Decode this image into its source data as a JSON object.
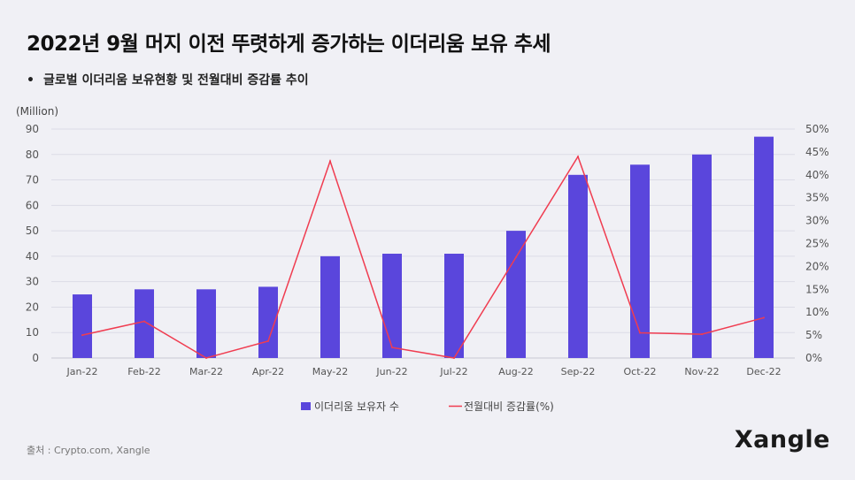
{
  "title": "2022년 9월 머지 이전 뚜렷하게 증가하는 이더리움 보유 추세",
  "subtitle": {
    "bullet": "•",
    "text": "글로벌 이더리움 보유현황 및 전월대비 증감률 추이"
  },
  "source": "출처 : Crypto.com, Xangle",
  "logo": "Xangle",
  "colors": {
    "bar": "#5a46dc",
    "line": "#f03c50",
    "grid": "#dcdce6",
    "background": "#f0f0f5"
  },
  "chart_data": {
    "type": "bar+line",
    "categories": [
      "Jan-22",
      "Feb-22",
      "Mar-22",
      "Apr-22",
      "May-22",
      "Jun-22",
      "Jul-22",
      "Aug-22",
      "Sep-22",
      "Oct-22",
      "Nov-22",
      "Dec-22"
    ],
    "series": [
      {
        "name": "이더리움 보유자 수",
        "type": "bar",
        "axis": "left",
        "values": [
          25,
          27,
          27,
          28,
          40,
          41,
          41,
          50,
          72,
          76,
          80,
          87
        ]
      },
      {
        "name": "전월대비 증감률(%)",
        "type": "line",
        "axis": "right",
        "values": [
          5,
          8,
          0,
          3.7,
          43,
          2.3,
          0,
          22,
          44,
          5.5,
          5.2,
          8.8
        ]
      }
    ],
    "y_left": {
      "unit_label": "(Million)",
      "ylim": [
        0,
        90
      ],
      "ticks": [
        0,
        10,
        20,
        30,
        40,
        50,
        60,
        70,
        80,
        90
      ],
      "tick_labels": [
        "0",
        "10",
        "20",
        "30",
        "40",
        "50",
        "60",
        "70",
        "80",
        "90"
      ]
    },
    "y_right": {
      "ylim": [
        0,
        50
      ],
      "ticks": [
        0,
        5,
        10,
        15,
        20,
        25,
        30,
        35,
        40,
        45,
        50
      ],
      "tick_labels": [
        "0%",
        "5%",
        "10%",
        "15%",
        "20%",
        "25%",
        "30%",
        "35%",
        "40%",
        "45%",
        "50%"
      ]
    },
    "grid": true,
    "legend_position": "bottom-center"
  }
}
